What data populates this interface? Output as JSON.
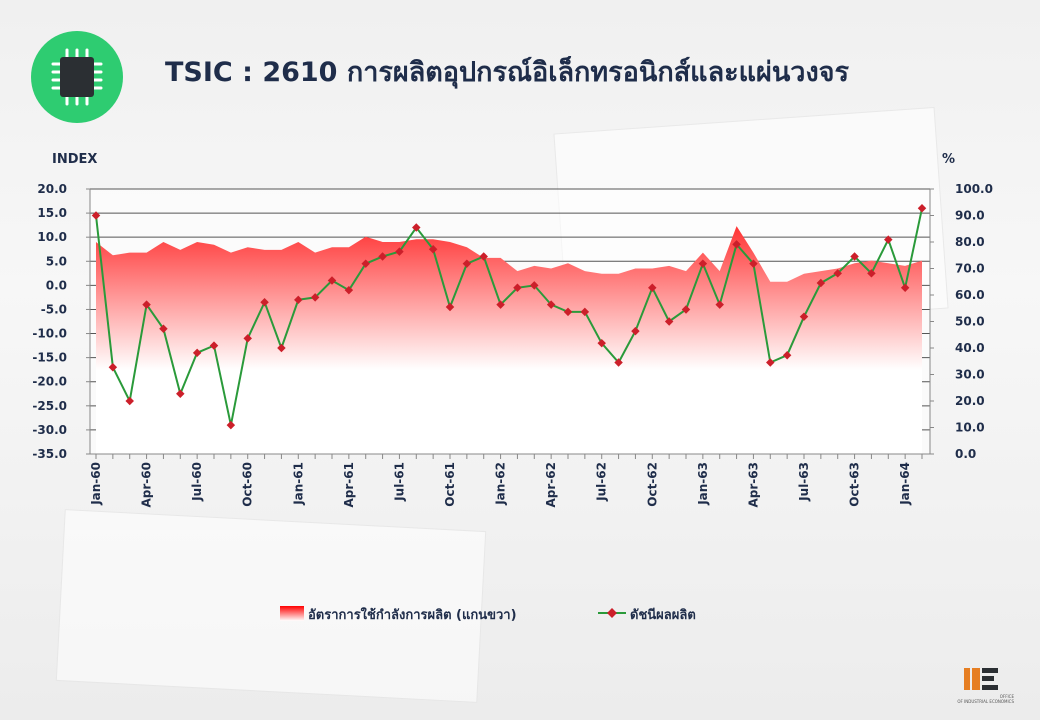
{
  "title": "TSIC : 2610 การผลิตอุปกรณ์อิเล็กทรอนิกส์และแผ่นวงจร",
  "icon": "microchip-icon",
  "colors": {
    "accent_green": "#2ecc71",
    "line": "#2a9a3a",
    "marker": "#cc1f2a",
    "area_top": "#ff0000",
    "title": "#1f2d4a"
  },
  "chart_data": {
    "type": "line",
    "left_axis_label": "INDEX",
    "right_axis_label": "%",
    "left_ylim": [
      -35,
      20
    ],
    "right_ylim": [
      0,
      100
    ],
    "left_ticks": [
      "20.0",
      "15.0",
      "10.0",
      "5.0",
      "0.0",
      "-5.0",
      "-10.0",
      "-15.0",
      "-20.0",
      "-25.0",
      "-30.0",
      "-35.0"
    ],
    "right_ticks": [
      "100.0",
      "90.0",
      "80.0",
      "70.0",
      "60.0",
      "50.0",
      "40.0",
      "30.0",
      "20.0",
      "10.0",
      "0.0"
    ],
    "x_tick_labels": [
      "Jan-60",
      "Apr-60",
      "Jul-60",
      "Oct-60",
      "Jan-61",
      "Apr-61",
      "Jul-61",
      "Oct-61",
      "Jan-62",
      "Apr-62",
      "Jul-62",
      "Oct-62",
      "Jan-63",
      "Apr-63",
      "Jul-63",
      "Oct-63",
      "Jan-64"
    ],
    "x_tick_months": [
      0,
      3,
      6,
      9,
      12,
      15,
      18,
      21,
      24,
      27,
      30,
      33,
      36,
      39,
      42,
      45,
      48
    ],
    "grid": true,
    "legend_position": "bottom",
    "series": [
      {
        "name": "อัตราการใช้กำลังการผลิต (แกนขวา)",
        "type": "area",
        "axis": "right",
        "values": [
          80,
          75,
          76,
          76,
          80,
          77,
          80,
          79,
          76,
          78,
          77,
          77,
          80,
          76,
          78,
          78,
          82,
          80,
          80,
          81,
          81,
          80,
          78,
          74,
          74,
          69,
          71,
          70,
          72,
          69,
          68,
          68,
          70,
          70,
          71,
          69,
          76,
          69,
          86,
          76,
          65,
          65,
          68,
          69,
          70,
          72,
          73,
          72,
          71,
          73
        ]
      },
      {
        "name": "ดัชนีผลผลิต",
        "type": "line",
        "axis": "left",
        "values": [
          14.5,
          -17.0,
          -24.0,
          -4.0,
          -9.0,
          -22.5,
          -14.0,
          -12.5,
          -29.0,
          -11.0,
          -3.5,
          -13.0,
          -3.0,
          -2.5,
          1.0,
          -1.0,
          4.5,
          6.0,
          7.0,
          12.0,
          7.5,
          -4.5,
          4.5,
          6.0,
          -4.0,
          -0.5,
          0.0,
          -4.0,
          -5.5,
          -5.5,
          -12.0,
          -16.0,
          -9.5,
          -0.5,
          -7.5,
          -5.0,
          4.5,
          -4.0,
          8.5,
          4.5,
          -16.0,
          -14.5,
          -6.5,
          0.5,
          2.5,
          6.0,
          2.5,
          9.5,
          -0.5,
          16.0
        ]
      }
    ]
  },
  "logo": {
    "org_line1": "OFFICE",
    "org_line2": "OF INDUSTRIAL ECONOMICS"
  }
}
